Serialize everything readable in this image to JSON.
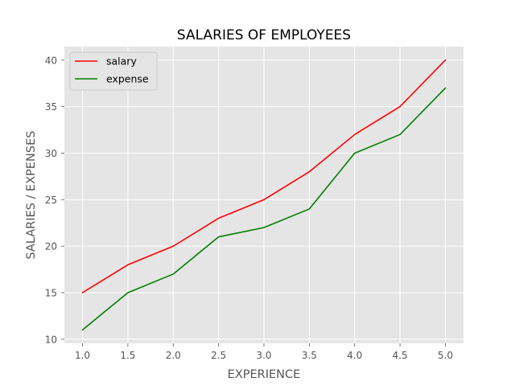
{
  "chart_data": {
    "type": "line",
    "title": "SALARIES OF EMPLOYEES",
    "xlabel": "EXPERIENCE",
    "ylabel": "SALARIES / EXPENSES",
    "x": [
      1.0,
      1.5,
      2.0,
      2.5,
      3.0,
      3.5,
      4.0,
      4.5,
      5.0
    ],
    "xticks": [
      "1.0",
      "1.5",
      "2.0",
      "2.5",
      "3.0",
      "3.5",
      "4.0",
      "4.5",
      "5.0"
    ],
    "yticks": [
      "10",
      "15",
      "20",
      "25",
      "30",
      "35",
      "40"
    ],
    "xlim": [
      0.8,
      5.2
    ],
    "ylim": [
      9.55,
      41.45
    ],
    "grid": true,
    "legend_position": "upper-left",
    "series": [
      {
        "name": "salary",
        "color": "#ff0000",
        "values": [
          15,
          18,
          20,
          23,
          25,
          28,
          32,
          35,
          40
        ]
      },
      {
        "name": "expense",
        "color": "#008000",
        "values": [
          11,
          15,
          17,
          21,
          22,
          24,
          30,
          32,
          37
        ]
      }
    ]
  },
  "colors": {
    "plot_background": "#e5e5e5",
    "grid": "#ffffff",
    "frame": "#ffffff"
  }
}
